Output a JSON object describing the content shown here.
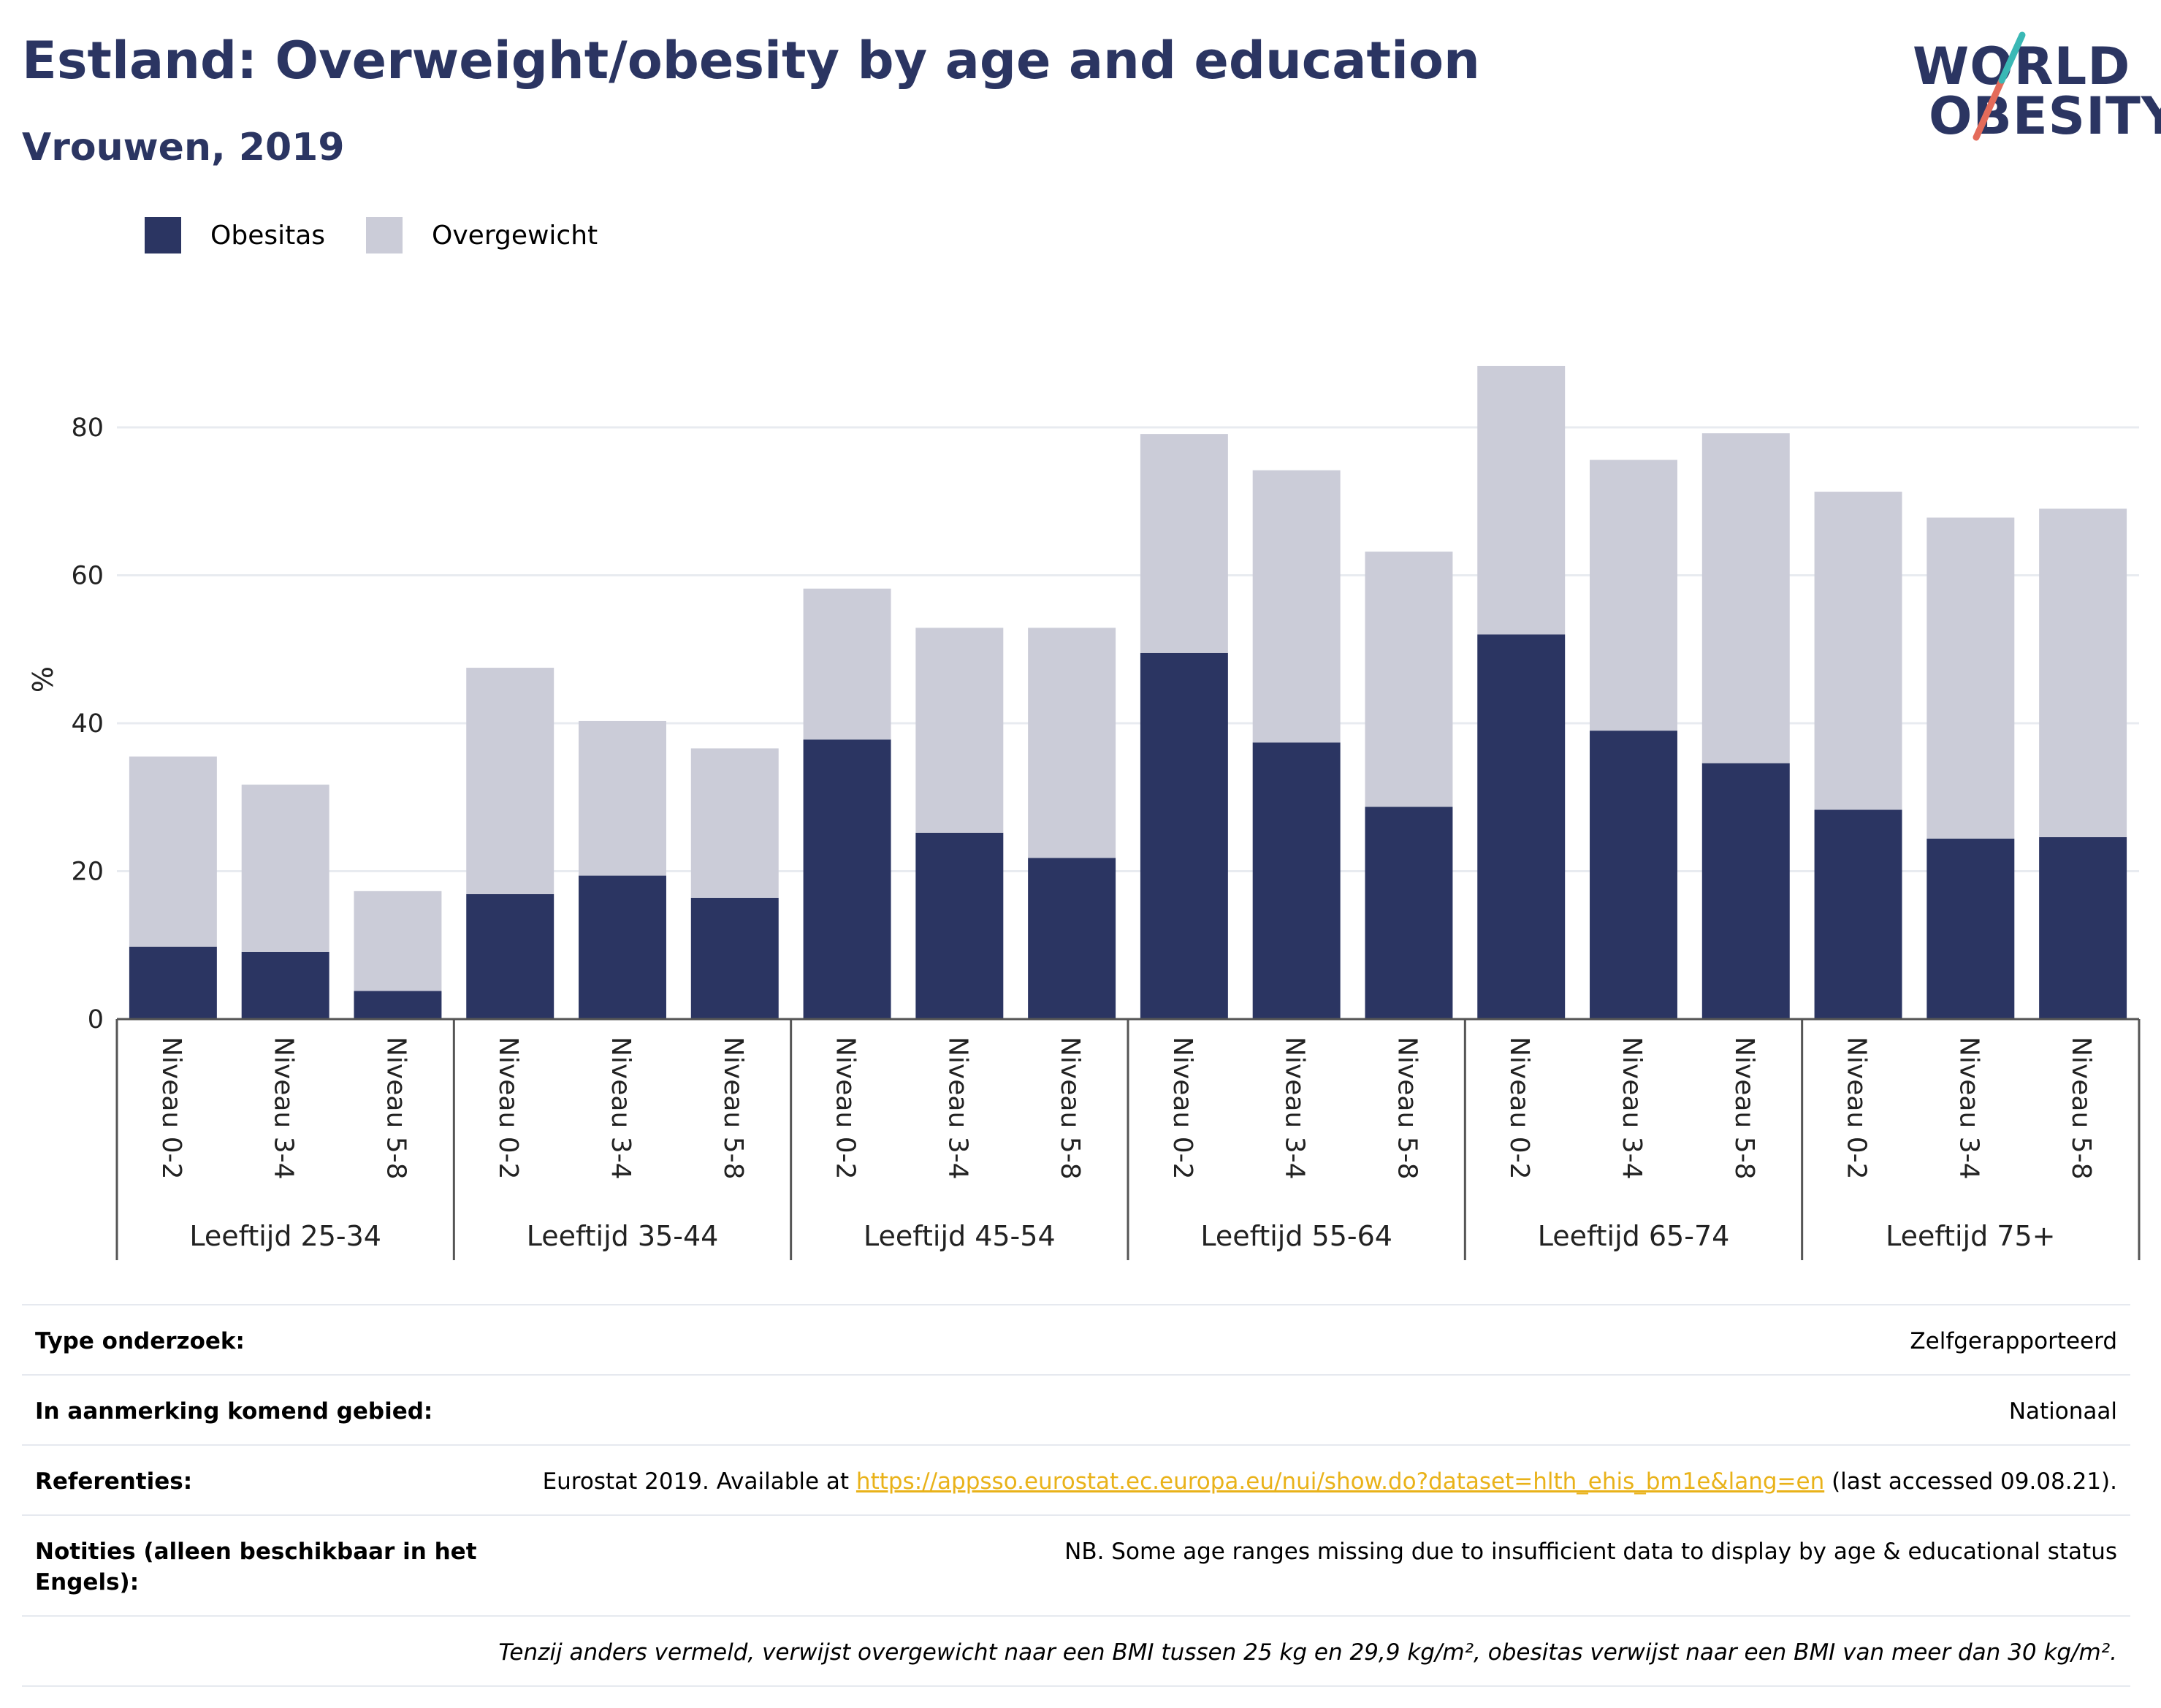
{
  "header": {
    "title": "Estland: Overweight/obesity by age and education",
    "subtitle": "Vrouwen, 2019"
  },
  "logo": {
    "line1": "WORLD",
    "line2": "OBESITY"
  },
  "colors": {
    "obesitas": "#2b3562",
    "overgewicht": "#cbccd8",
    "accent_teal": "#3ab8b5",
    "accent_red": "#e46b5a",
    "link": "#e9b219"
  },
  "legend": [
    {
      "label": "Obesitas",
      "color": "#2b3562"
    },
    {
      "label": "Overgewicht",
      "color": "#cbccd8"
    }
  ],
  "chart_data": {
    "type": "bar",
    "stacked": true,
    "ylabel": "%",
    "ylim": [
      0,
      90
    ],
    "yticks": [
      0,
      20,
      40,
      60,
      80
    ],
    "grid": true,
    "legend_position": "top-left",
    "groups": [
      "Leeftijd 25-34",
      "Leeftijd 35-44",
      "Leeftijd 45-54",
      "Leeftijd 55-64",
      "Leeftijd 65-74",
      "Leeftijd 75+"
    ],
    "sub_categories": [
      "Niveau 0-2",
      "Niveau 3-4",
      "Niveau 5-8"
    ],
    "series": [
      {
        "name": "Obesitas",
        "values": [
          9.8,
          9.1,
          3.8,
          16.9,
          19.4,
          16.4,
          37.8,
          25.2,
          21.8,
          49.5,
          37.4,
          28.7,
          52.0,
          39.0,
          34.6,
          28.3,
          24.4,
          24.6
        ]
      },
      {
        "name": "Overgewicht",
        "values": [
          25.7,
          22.6,
          13.5,
          30.6,
          20.9,
          20.2,
          20.4,
          27.7,
          31.1,
          29.6,
          36.8,
          34.5,
          36.3,
          36.6,
          44.6,
          43.0,
          43.4,
          44.4
        ]
      }
    ],
    "totals": [
      35.5,
      31.7,
      17.3,
      47.5,
      40.3,
      36.6,
      58.2,
      52.9,
      52.9,
      79.1,
      74.2,
      63.2,
      88.3,
      75.6,
      79.2,
      71.3,
      67.8,
      69.0
    ]
  },
  "info": {
    "rows": [
      {
        "key": "Type onderzoek:",
        "value": "Zelfgerapporteerd"
      },
      {
        "key": "In aanmerking komend gebied:",
        "value": "Nationaal"
      },
      {
        "key": "Referenties:",
        "value_prefix": "Eurostat 2019. Available at ",
        "link": "https://appsso.eurostat.ec.europa.eu/nui/show.do?dataset=hlth_ehis_bm1e&lang=en",
        "value_suffix": " (last accessed 09.08.21)."
      },
      {
        "key": "Notities (alleen beschikbaar in het Engels):",
        "value": "NB. Some age ranges missing due to insufficient data to display by age & educational status"
      }
    ],
    "note": "Tenzij anders vermeld, verwijst overgewicht naar een BMI tussen 25 kg en 29,9 kg/m², obesitas verwijst naar een BMI van meer dan 30 kg/m²."
  }
}
